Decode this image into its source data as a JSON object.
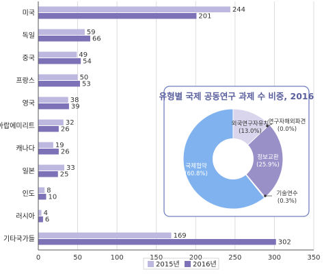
{
  "chart_data": [
    {
      "type": "bar",
      "orientation": "horizontal",
      "categories": [
        "미국",
        "독일",
        "중국",
        "프랑스",
        "영국",
        "아랍에미리트",
        "캐나다",
        "일본",
        "인도",
        "러시아",
        "기타국가들"
      ],
      "series": [
        {
          "name": "2015년",
          "values": [
            244,
            59,
            49,
            50,
            38,
            32,
            19,
            33,
            8,
            4,
            169
          ],
          "color": "#bcb8df"
        },
        {
          "name": "2016년",
          "values": [
            201,
            66,
            54,
            53,
            39,
            26,
            26,
            25,
            10,
            6,
            302
          ],
          "color": "#7d72b8"
        }
      ],
      "xlim": [
        0,
        350
      ],
      "xticks": [
        0,
        50,
        100,
        150,
        200,
        250,
        300,
        350
      ],
      "legend": "bottom-center"
    },
    {
      "type": "pie",
      "style": "donut",
      "title": "유형별 국제 공동연구 과제 수 비중, 2016",
      "slices": [
        {
          "name": "외국연구자유치",
          "value": 13.0,
          "label": "(13.0%)",
          "color": "#d9d5ec"
        },
        {
          "name": "연구자해외파견",
          "value": 0.0,
          "label": "(0.0%)",
          "color": "#b6b1dc"
        },
        {
          "name": "정보교환",
          "value": 25.9,
          "label": "(25.9%)",
          "color": "#9a90c8"
        },
        {
          "name": "기술연수",
          "value": 0.3,
          "label": "(0.3%)",
          "color": "#8c82c0"
        },
        {
          "name": "국제협약",
          "value": 60.8,
          "label": "(60.8%)",
          "color": "#7fb2ee"
        }
      ]
    }
  ],
  "colors": {
    "inset_border": "#6f7fc0",
    "gridline": "#dcdcdc"
  }
}
